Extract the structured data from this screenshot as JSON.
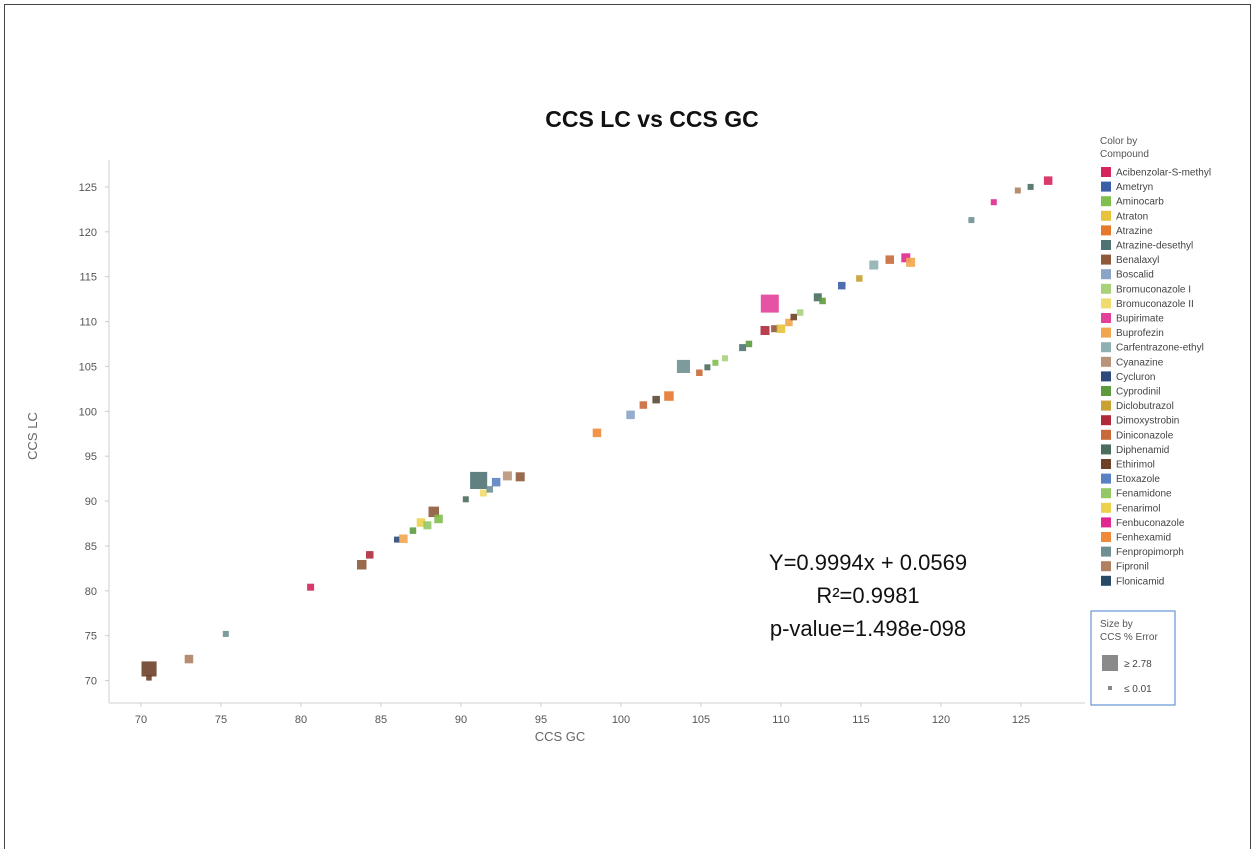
{
  "chart_data": {
    "type": "scatter",
    "title": "CCS LC vs CCS GC",
    "xlabel": "CCS GC",
    "ylabel": "CCS LC",
    "xlim": [
      68,
      129
    ],
    "ylim": [
      67.5,
      128
    ],
    "xticks": [
      "70",
      "75",
      "80",
      "85",
      "90",
      "95",
      "100",
      "105",
      "110",
      "115",
      "120",
      "125"
    ],
    "yticks": [
      "70",
      "75",
      "80",
      "85",
      "90",
      "95",
      "100",
      "105",
      "110",
      "115",
      "120",
      "125"
    ],
    "grid": false,
    "annotation": [
      "Y=0.9994x + 0.0569",
      "R²=0.9981",
      "p-value=1.498e-098"
    ],
    "legend_color": {
      "title": [
        "Color by",
        "Compound"
      ],
      "position": "right",
      "entries": [
        {
          "name": "Acibenzolar-S-methyl",
          "color": "#d6245c"
        },
        {
          "name": "Ametryn",
          "color": "#3a5ea8"
        },
        {
          "name": "Aminocarb",
          "color": "#7fbf4d"
        },
        {
          "name": "Atraton",
          "color": "#e8c23a"
        },
        {
          "name": "Atrazine",
          "color": "#e6782e"
        },
        {
          "name": "Atrazine-desethyl",
          "color": "#4f7273"
        },
        {
          "name": "Benalaxyl",
          "color": "#8e5a3a"
        },
        {
          "name": "Boscalid",
          "color": "#8aa3c8"
        },
        {
          "name": "Bromuconazole I",
          "color": "#a9d17a"
        },
        {
          "name": "Bromuconazole II",
          "color": "#f0dc6e"
        },
        {
          "name": "Bupirimate",
          "color": "#e4409a"
        },
        {
          "name": "Buprofezin",
          "color": "#f0a64e"
        },
        {
          "name": "Carfentrazone-ethyl",
          "color": "#8fb0b2"
        },
        {
          "name": "Cyanazine",
          "color": "#b8957a"
        },
        {
          "name": "Cycluron",
          "color": "#2c4a7a"
        },
        {
          "name": "Cyprodinil",
          "color": "#5c9a3c"
        },
        {
          "name": "Diclobutrazol",
          "color": "#c9a032"
        },
        {
          "name": "Dimoxystrobin",
          "color": "#b02a3c"
        },
        {
          "name": "Diniconazole",
          "color": "#c96a3a"
        },
        {
          "name": "Diphenamid",
          "color": "#4a6e5e"
        },
        {
          "name": "Ethirimol",
          "color": "#6e4028"
        },
        {
          "name": "Etoxazole",
          "color": "#5a82c2"
        },
        {
          "name": "Fenamidone",
          "color": "#92c866"
        },
        {
          "name": "Fenarimol",
          "color": "#ecd24a"
        },
        {
          "name": "Fenbuconazole",
          "color": "#e02890"
        },
        {
          "name": "Fenhexamid",
          "color": "#f08a3a"
        },
        {
          "name": "Fenpropimorph",
          "color": "#6f8f92"
        },
        {
          "name": "Fipronil",
          "color": "#b08060"
        },
        {
          "name": "Flonicamid",
          "color": "#284a66"
        }
      ]
    },
    "legend_size": {
      "title": [
        "Size by",
        "CCS % Error"
      ],
      "position": "bottom-right",
      "entries": [
        {
          "label": "≥ 2.78",
          "size": 2.78
        },
        {
          "label": "≤ 0.01",
          "size": 0.01
        }
      ]
    },
    "points": [
      {
        "x": 70.5,
        "y": 71.3,
        "color": "#6e4028",
        "size": 2.2
      },
      {
        "x": 70.5,
        "y": 70.3,
        "color": "#6e4028",
        "size": 0.3
      },
      {
        "x": 73.0,
        "y": 72.4,
        "color": "#b08060",
        "size": 0.9
      },
      {
        "x": 75.3,
        "y": 75.2,
        "color": "#6f8f92",
        "size": 0.4
      },
      {
        "x": 80.6,
        "y": 80.4,
        "color": "#d6245c",
        "size": 0.6
      },
      {
        "x": 83.8,
        "y": 82.9,
        "color": "#8e5a3a",
        "size": 1.1
      },
      {
        "x": 84.3,
        "y": 84.0,
        "color": "#b02a3c",
        "size": 0.7
      },
      {
        "x": 86.0,
        "y": 85.7,
        "color": "#2c4a7a",
        "size": 0.4
      },
      {
        "x": 86.4,
        "y": 85.8,
        "color": "#f0a64e",
        "size": 0.9
      },
      {
        "x": 87.0,
        "y": 86.7,
        "color": "#5c9a3c",
        "size": 0.5
      },
      {
        "x": 87.5,
        "y": 87.6,
        "color": "#ecd24a",
        "size": 0.9
      },
      {
        "x": 87.9,
        "y": 87.3,
        "color": "#92c866",
        "size": 0.8
      },
      {
        "x": 88.3,
        "y": 88.8,
        "color": "#8e5a3a",
        "size": 1.3
      },
      {
        "x": 88.6,
        "y": 88.0,
        "color": "#7fbf4d",
        "size": 0.9
      },
      {
        "x": 90.3,
        "y": 90.2,
        "color": "#4a6e5e",
        "size": 0.4
      },
      {
        "x": 91.1,
        "y": 92.3,
        "color": "#4f7273",
        "size": 2.6
      },
      {
        "x": 91.4,
        "y": 90.9,
        "color": "#f0dc6e",
        "size": 0.6
      },
      {
        "x": 91.8,
        "y": 91.3,
        "color": "#6f8f92",
        "size": 0.5
      },
      {
        "x": 92.2,
        "y": 92.1,
        "color": "#5a82c2",
        "size": 0.9
      },
      {
        "x": 92.9,
        "y": 92.8,
        "color": "#b8957a",
        "size": 1.0
      },
      {
        "x": 93.7,
        "y": 92.7,
        "color": "#8e5a3a",
        "size": 1.0
      },
      {
        "x": 98.5,
        "y": 97.6,
        "color": "#f08a3a",
        "size": 0.9
      },
      {
        "x": 100.6,
        "y": 99.6,
        "color": "#8aa3c8",
        "size": 0.9
      },
      {
        "x": 101.4,
        "y": 100.7,
        "color": "#c96a3a",
        "size": 0.7
      },
      {
        "x": 102.2,
        "y": 101.3,
        "color": "#5a4a3a",
        "size": 0.7
      },
      {
        "x": 103.0,
        "y": 101.7,
        "color": "#e6782e",
        "size": 1.1
      },
      {
        "x": 103.9,
        "y": 105.0,
        "color": "#6f8f92",
        "size": 1.8
      },
      {
        "x": 104.9,
        "y": 104.3,
        "color": "#c96a3a",
        "size": 0.5
      },
      {
        "x": 105.4,
        "y": 104.9,
        "color": "#4a6e5e",
        "size": 0.4
      },
      {
        "x": 105.9,
        "y": 105.4,
        "color": "#7fbf4d",
        "size": 0.4
      },
      {
        "x": 106.5,
        "y": 105.9,
        "color": "#a9d17a",
        "size": 0.4
      },
      {
        "x": 107.6,
        "y": 107.1,
        "color": "#4f7273",
        "size": 0.6
      },
      {
        "x": 108.0,
        "y": 107.5,
        "color": "#5c9a3c",
        "size": 0.5
      },
      {
        "x": 109.0,
        "y": 109.0,
        "color": "#b02a3c",
        "size": 1.0
      },
      {
        "x": 109.3,
        "y": 112.0,
        "color": "#e4409a",
        "size": 2.78
      },
      {
        "x": 109.6,
        "y": 109.2,
        "color": "#8e5a3a",
        "size": 0.6
      },
      {
        "x": 110.0,
        "y": 109.2,
        "color": "#e8c23a",
        "size": 0.9
      },
      {
        "x": 110.5,
        "y": 109.9,
        "color": "#f0a64e",
        "size": 0.7
      },
      {
        "x": 110.8,
        "y": 110.5,
        "color": "#6e4028",
        "size": 0.5
      },
      {
        "x": 111.2,
        "y": 111.0,
        "color": "#a9d17a",
        "size": 0.5
      },
      {
        "x": 112.3,
        "y": 112.7,
        "color": "#4a6e5e",
        "size": 0.8
      },
      {
        "x": 112.6,
        "y": 112.3,
        "color": "#5c9a3c",
        "size": 0.5
      },
      {
        "x": 113.8,
        "y": 114.0,
        "color": "#3a5ea8",
        "size": 0.7
      },
      {
        "x": 114.9,
        "y": 114.8,
        "color": "#c9a032",
        "size": 0.5
      },
      {
        "x": 115.8,
        "y": 116.3,
        "color": "#8fb0b2",
        "size": 1.0
      },
      {
        "x": 116.8,
        "y": 116.9,
        "color": "#c96a3a",
        "size": 0.9
      },
      {
        "x": 117.8,
        "y": 117.1,
        "color": "#e02890",
        "size": 1.0
      },
      {
        "x": 118.1,
        "y": 116.6,
        "color": "#f0a64e",
        "size": 1.0
      },
      {
        "x": 121.9,
        "y": 121.3,
        "color": "#6f8f92",
        "size": 0.4
      },
      {
        "x": 123.3,
        "y": 123.3,
        "color": "#e02890",
        "size": 0.4
      },
      {
        "x": 124.8,
        "y": 124.6,
        "color": "#b08060",
        "size": 0.4
      },
      {
        "x": 125.6,
        "y": 125.0,
        "color": "#4a6e5e",
        "size": 0.4
      },
      {
        "x": 126.7,
        "y": 125.7,
        "color": "#d6245c",
        "size": 0.9
      }
    ]
  }
}
